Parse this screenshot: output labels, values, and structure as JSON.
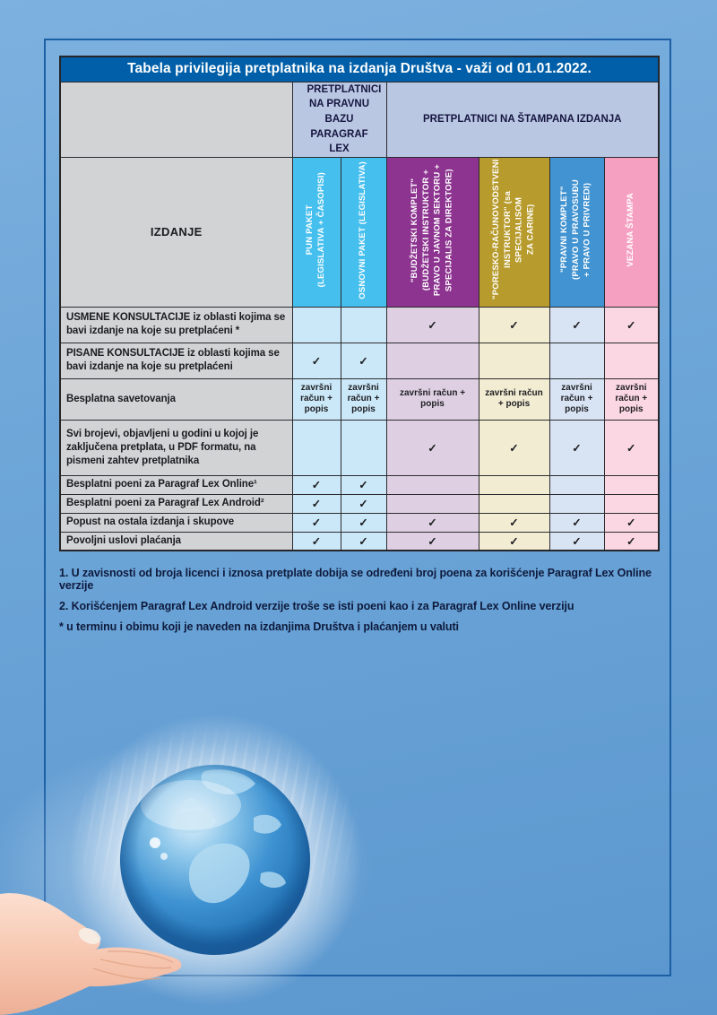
{
  "page": {
    "title": "Tabela privilegija pretplatnika na izdanja Društva - važi od 01.01.2022."
  },
  "table": {
    "izdanje_label": "IZDANJE",
    "group_headers": {
      "pravna_baza": "PRETPLATNICI NA PRAVNU BAZU PARAGRAF LEX",
      "stampana_izdanja": "PRETPLATNICI NA ŠTAMPANA IZDANJA"
    },
    "check_symbol": "✓",
    "columns": [
      {
        "id": "pun-paket",
        "label": "PUN PAKET\n(LEGISLATIVA + ČASOPISI)",
        "header_bg": "#45bfee",
        "body_bg": "#cbe8f8"
      },
      {
        "id": "osnovni-paket",
        "label": "OSNOVNI PAKET (LEGISLATIVA)",
        "header_bg": "#45bfee",
        "body_bg": "#cbe8f8"
      },
      {
        "id": "budzetski-komplet",
        "label": "\"BUDŽETSKI KOMPLET\"\n(BUDŽETSKI INSTRUKTOR +\nPRAVO U JAVNOM SEKTORU +\nSPECIJALIS ZA DIREKTORE)",
        "header_bg": "#8d3390",
        "body_bg": "#ded0e2"
      },
      {
        "id": "poresko-racunovodstveni",
        "label": "\"PORESKO-RAČUNOVODSTVENI\nINSTRUKTOR\" (sa SPECIJALISOM\nZA CARINE)",
        "header_bg": "#b79b2c",
        "body_bg": "#f2ecd2"
      },
      {
        "id": "pravni-komplet",
        "label": "\"PRAVNI KOMPLET\"\n(PRAVO U PRAVOSUĐU\n+ PRAVO U PRIVREDI)",
        "header_bg": "#4193d1",
        "body_bg": "#d8e4f4"
      },
      {
        "id": "vezana-stampa",
        "label": "VEZANA ŠTAMPA",
        "header_bg": "#f5a0c0",
        "body_bg": "#fbd7e3"
      }
    ],
    "rows": [
      {
        "label": "USMENE KONSULTACIJE iz oblasti kojima se bavi izdanje na koje su pretplaćeni *",
        "cells": [
          "",
          "",
          "✓",
          "✓",
          "✓",
          "✓"
        ]
      },
      {
        "label": "PISANE KONSULTACIJE iz oblasti kojima se bavi izdanje na koje su pretplaćeni",
        "cells": [
          "✓",
          "✓",
          "",
          "",
          "",
          ""
        ]
      },
      {
        "label": "Besplatna savetovanja",
        "cells": [
          "završni račun + popis",
          "završni račun + popis",
          "završni račun + popis",
          "završni račun + popis",
          "završni račun + popis",
          "završni račun + popis"
        ]
      },
      {
        "label": "Svi brojevi, objavljeni u  godini u kojoj je zaključena pretplata, u PDF formatu, na pismeni zahtev pretplatnika",
        "cells": [
          "",
          "",
          "✓",
          "✓",
          "✓",
          "✓"
        ]
      },
      {
        "label": "Besplatni poeni za Paragraf Lex Online¹",
        "cells": [
          "✓",
          "✓",
          "",
          "",
          "",
          ""
        ]
      },
      {
        "label": "Besplatni poeni za Paragraf Lex Android²",
        "cells": [
          "✓",
          "✓",
          "",
          "",
          "",
          ""
        ]
      },
      {
        "label": "Popust na ostala izdanja i skupove",
        "cells": [
          "✓",
          "✓",
          "✓",
          "✓",
          "✓",
          "✓"
        ]
      },
      {
        "label": "Povoljni uslovi plaćanja",
        "cells": [
          "✓",
          "✓",
          "✓",
          "✓",
          "✓",
          "✓"
        ]
      }
    ]
  },
  "footnotes": [
    "1. U zavisnosti od broja licenci i iznosa pretplate dobija se određeni broj poena za korišćenje Paragraf Lex Online verzije",
    "2. Korišćenjem Paragraf Lex Android verzije troše se isti poeni kao i za Paragraf Lex Online verziju",
    "* u terminu i obimu koji je naveden na izdanjima Društva i plaćanjem u valuti"
  ],
  "illustration": {
    "description": "hand holding glass globe",
    "globe_color": "#2f82c4",
    "skin_top": "#fcdfd0",
    "skin_bottom": "#edb096"
  },
  "colors": {
    "page_grad_top": "#7db1df",
    "page_grad_bottom": "#5b97ce",
    "frame_border": "#1c5fa5",
    "title_bg": "#005fa8",
    "group_bg": "#bac7e3",
    "label_bg": "#d2d3d5",
    "grid_border": "#2c2c30",
    "footnote_color": "#0e1a3c",
    "check_color": "#1e1e22"
  }
}
